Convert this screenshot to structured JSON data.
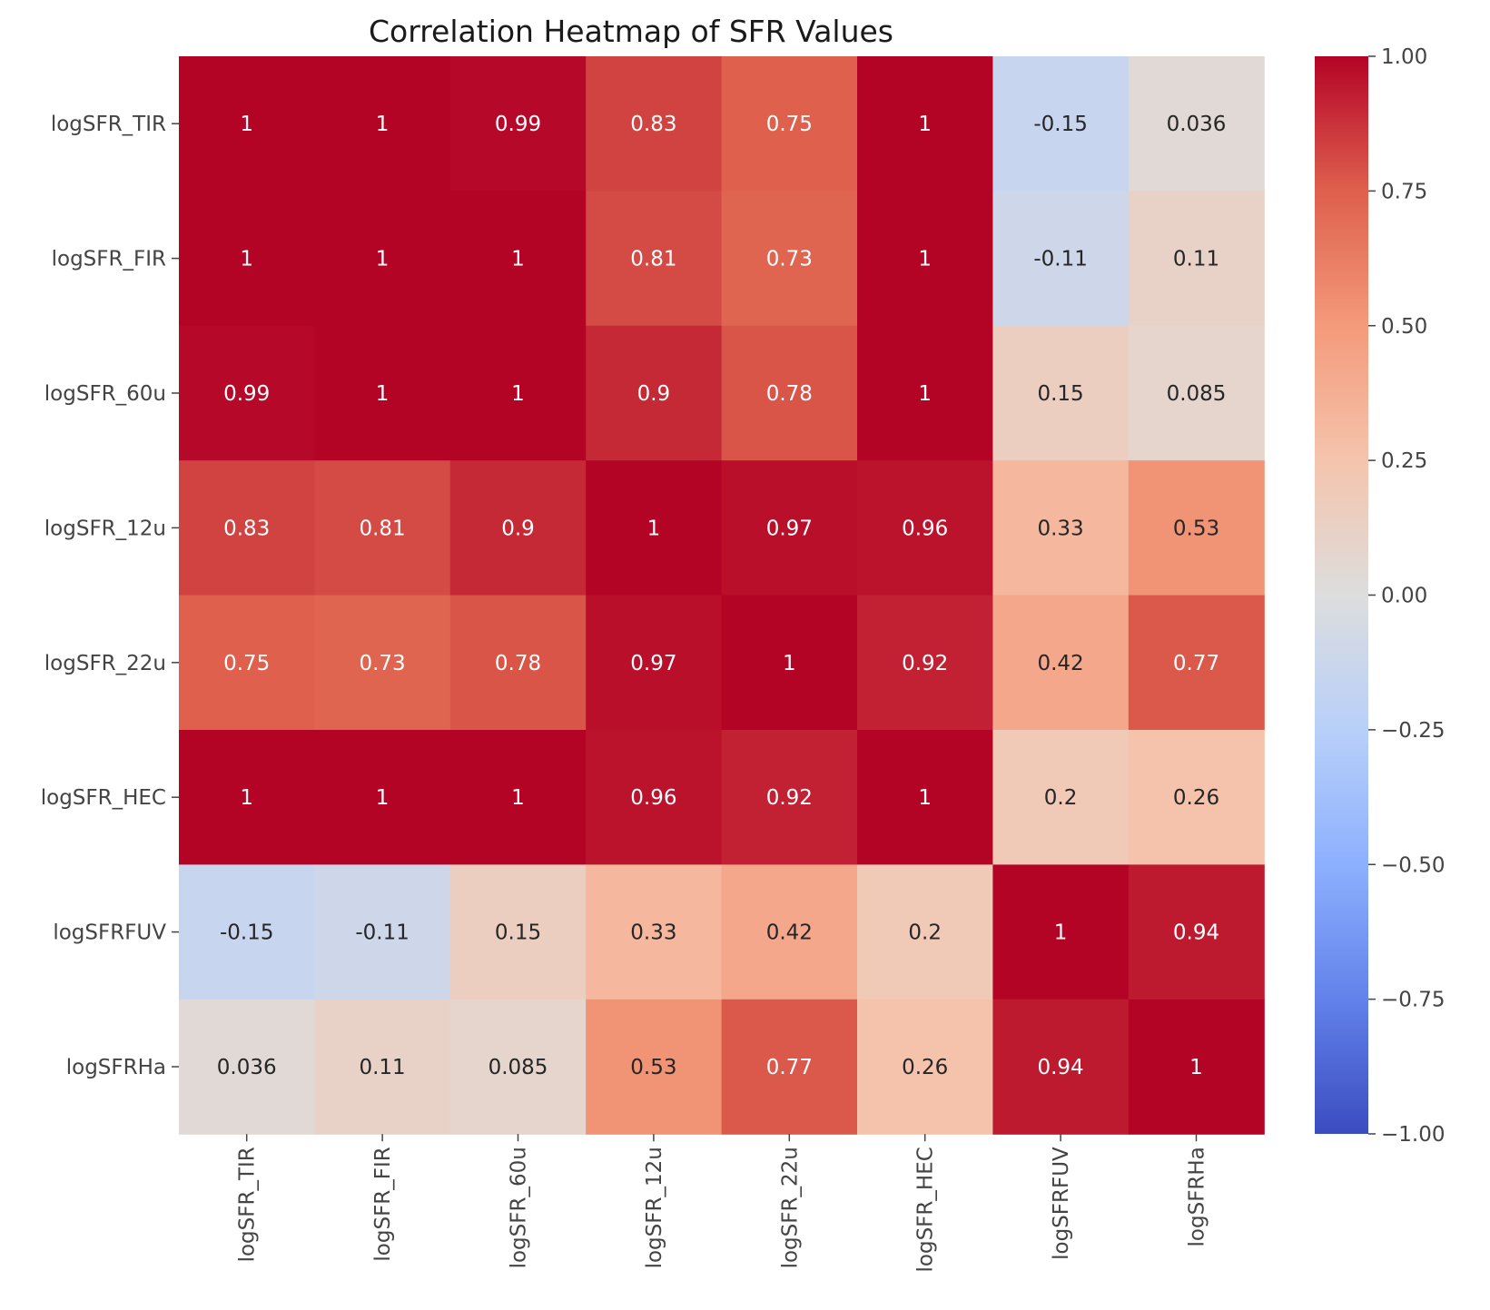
{
  "chart_data": {
    "type": "heatmap",
    "title": "Correlation Heatmap of SFR Values",
    "xlabel": "",
    "ylabel": "",
    "row_labels": [
      "logSFR_TIR",
      "logSFR_FIR",
      "logSFR_60u",
      "logSFR_12u",
      "logSFR_22u",
      "logSFR_HEC",
      "logSFRFUV",
      "logSFRHa"
    ],
    "col_labels": [
      "logSFR_TIR",
      "logSFR_FIR",
      "logSFR_60u",
      "logSFR_12u",
      "logSFR_22u",
      "logSFR_HEC",
      "logSFRFUV",
      "logSFRHa"
    ],
    "values": [
      [
        1,
        1,
        0.99,
        0.83,
        0.75,
        1,
        -0.15,
        0.036
      ],
      [
        1,
        1,
        1,
        0.81,
        0.73,
        1,
        -0.11,
        0.11
      ],
      [
        0.99,
        1,
        1,
        0.9,
        0.78,
        1,
        0.15,
        0.085
      ],
      [
        0.83,
        0.81,
        0.9,
        1,
        0.97,
        0.96,
        0.33,
        0.53
      ],
      [
        0.75,
        0.73,
        0.78,
        0.97,
        1,
        0.92,
        0.42,
        0.77
      ],
      [
        1,
        1,
        1,
        0.96,
        0.92,
        1,
        0.2,
        0.26
      ],
      [
        -0.15,
        -0.11,
        0.15,
        0.33,
        0.42,
        0.2,
        1,
        0.94
      ],
      [
        0.036,
        0.11,
        0.085,
        0.53,
        0.77,
        0.26,
        0.94,
        1
      ]
    ],
    "value_labels": [
      [
        "1",
        "1",
        "0.99",
        "0.83",
        "0.75",
        "1",
        "-0.15",
        "0.036"
      ],
      [
        "1",
        "1",
        "1",
        "0.81",
        "0.73",
        "1",
        "-0.11",
        "0.11"
      ],
      [
        "0.99",
        "1",
        "1",
        "0.9",
        "0.78",
        "1",
        "0.15",
        "0.085"
      ],
      [
        "0.83",
        "0.81",
        "0.9",
        "1",
        "0.97",
        "0.96",
        "0.33",
        "0.53"
      ],
      [
        "0.75",
        "0.73",
        "0.78",
        "0.97",
        "1",
        "0.92",
        "0.42",
        "0.77"
      ],
      [
        "1",
        "1",
        "1",
        "0.96",
        "0.92",
        "1",
        "0.2",
        "0.26"
      ],
      [
        "-0.15",
        "-0.11",
        "0.15",
        "0.33",
        "0.42",
        "0.2",
        "1",
        "0.94"
      ],
      [
        "0.036",
        "0.11",
        "0.085",
        "0.53",
        "0.77",
        "0.26",
        "0.94",
        "1"
      ]
    ],
    "colormap": "coolwarm",
    "vmin": -1,
    "vmax": 1,
    "colorbar_ticks": [
      1.0,
      0.75,
      0.5,
      0.25,
      0.0,
      -0.25,
      -0.5,
      -0.75,
      -1.0
    ],
    "colorbar_tick_labels": [
      "1.00",
      "0.75",
      "0.50",
      "0.25",
      "0.00",
      "−0.25",
      "−0.50",
      "−0.75",
      "−1.00"
    ],
    "grid": false,
    "colorbar_position": "right"
  }
}
